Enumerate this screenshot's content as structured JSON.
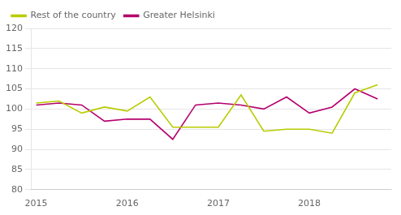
{
  "chart_data": {
    "type": "line",
    "x": [
      2015.0,
      2015.25,
      2015.5,
      2015.75,
      2016.0,
      2016.25,
      2016.5,
      2016.75,
      2017.0,
      2017.25,
      2017.5,
      2017.75,
      2018.0,
      2018.25,
      2018.5,
      2018.75
    ],
    "series": [
      {
        "name": "Rest of the country",
        "color": "#b8cc00",
        "values": [
          101.5,
          102.0,
          99.0,
          100.5,
          99.5,
          103.0,
          95.5,
          95.5,
          95.5,
          103.5,
          94.5,
          95.0,
          95.0,
          94.0,
          104.0,
          106.0
        ]
      },
      {
        "name": "Greater Helsinki",
        "color": "#b5006e",
        "values": [
          101.0,
          101.5,
          101.0,
          97.0,
          97.5,
          97.5,
          92.5,
          101.0,
          101.5,
          101.0,
          100.0,
          103.0,
          99.0,
          100.5,
          105.0,
          102.5
        ]
      }
    ],
    "xlim": [
      2014.95,
      2018.9
    ],
    "xticks": [
      2015,
      2016,
      2017,
      2018
    ],
    "ylim": [
      80,
      120
    ],
    "yticks": [
      80,
      85,
      90,
      95,
      100,
      105,
      110,
      115,
      120
    ],
    "grid": "y",
    "legend": "upper left"
  }
}
